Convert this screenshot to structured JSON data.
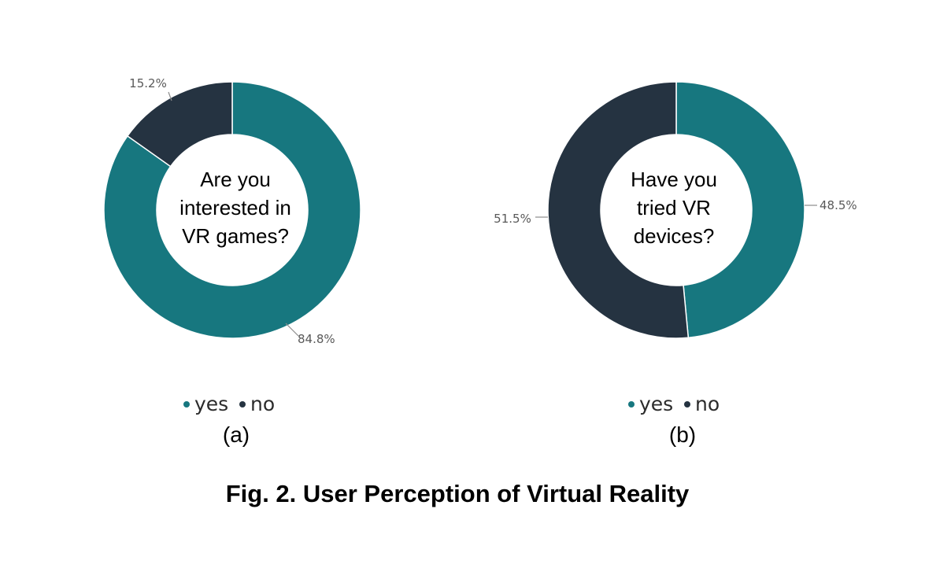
{
  "colors": {
    "yes": "#17777f",
    "no": "#253341",
    "leader": "#8c8c8c"
  },
  "chart_data": [
    {
      "type": "pie",
      "variant": "donut",
      "center_text": [
        "Are you",
        "interested in",
        "VR games?"
      ],
      "slices": [
        {
          "name": "yes",
          "value": 84.8,
          "label": "84.8%"
        },
        {
          "name": "no",
          "value": 15.2,
          "label": "15.2%"
        }
      ],
      "legend": [
        "yes",
        "no"
      ],
      "legend_position": "bottom",
      "sub_label": "(a)"
    },
    {
      "type": "pie",
      "variant": "donut",
      "center_text": [
        "Have you",
        "tried VR",
        "devices?"
      ],
      "slices": [
        {
          "name": "yes",
          "value": 48.5,
          "label": "48.5%"
        },
        {
          "name": "no",
          "value": 51.5,
          "label": "51.5%"
        }
      ],
      "legend": [
        "yes",
        "no"
      ],
      "legend_position": "bottom",
      "sub_label": "(b)"
    }
  ],
  "caption": "Fig. 2. User Perception of Virtual Reality"
}
